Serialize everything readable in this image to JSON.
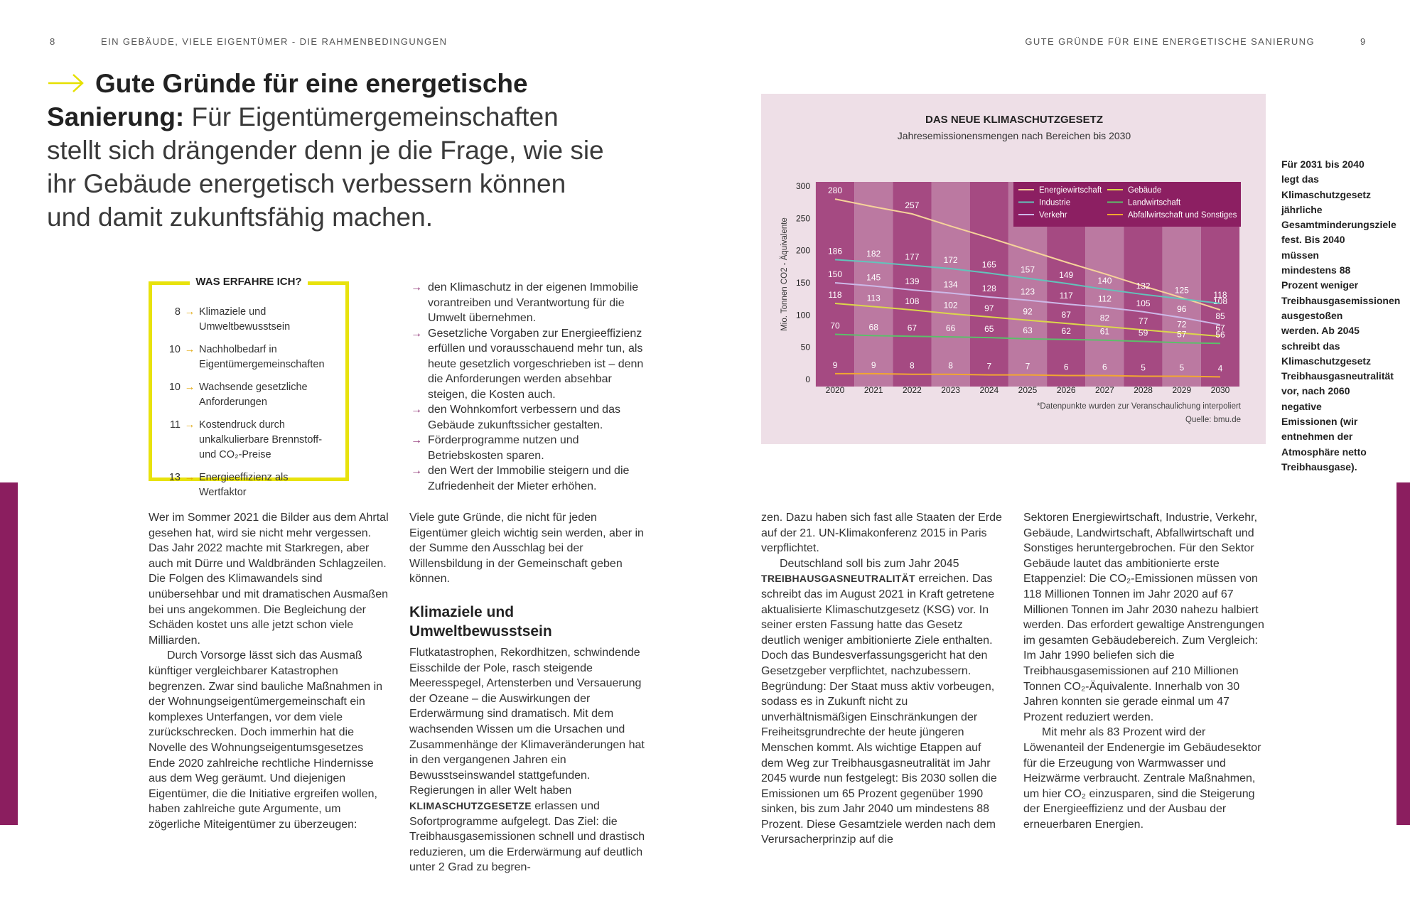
{
  "header": {
    "left_page": "8",
    "left_title": "EIN GEBÄUDE, VIELE EIGENTÜMER - DIE RAHMENBEDINGUNGEN",
    "right_title": "GUTE GRÜNDE FÜR EINE ENERGETISCHE SANIERUNG",
    "right_page": "9"
  },
  "intro": {
    "lead": "Gute Gründe für eine energetische Sanierung:",
    "text": " Für Eigentümergemeinschaften stellt sich drängender denn je die Frage, wie sie ihr Gebäude energetisch verbessern können und damit zukunftsfähig machen."
  },
  "box": {
    "title": "WAS ERFAHRE ICH?",
    "items": [
      {
        "page": 8,
        "text": "Klimaziele und Umweltbewusstsein"
      },
      {
        "page": 10,
        "text": "Nachholbedarf in Eigentümergemeinschaften"
      },
      {
        "page": 10,
        "text": "Wachsende gesetzliche Anforderungen"
      },
      {
        "page": 11,
        "text": "Kostendruck durch unkalkulierbare Brennstoff- und CO₂-Preise"
      },
      {
        "page": 13,
        "text": "Energieeffizienz als Wertfaktor"
      }
    ]
  },
  "bullets": [
    "den Klimaschutz in der eigenen Immobilie vorantreiben und Verantwortung für die Umwelt übernehmen.",
    "Gesetzliche Vorgaben zur Energieeffizienz erfüllen und vorausschauend mehr tun, als heute gesetzlich vorgeschrieben ist – denn die Anforderungen werden absehbar steigen, die Kosten auch.",
    "den Wohnkomfort verbessern und das Gebäude zukunftssicher gestalten.",
    "Förderprogramme nutzen und Betriebskosten sparen.",
    "den Wert der Immobilie steigern und die Zufriedenheit der Mieter erhöhen."
  ],
  "columns": [
    [
      {
        "paragraph": [
          "Wer im Sommer 2021 die Bilder aus dem Ahrtal gesehen hat, wird sie nicht mehr vergessen. Das Jahr 2022 machte mit Starkregen, aber auch mit Dürre und Waldbränden Schlagzeilen. Die Folgen des Klimawandels sind unübersehbar und mit dramatischen Ausmaßen bei uns angekommen. Die Begleichung der Schäden kostet uns alle jetzt schon viele Milliarden."
        ]
      },
      {
        "paragraph": [
          "Durch Vorsorge lässt sich das Ausmaß künftiger vergleichbarer Katastrophen begrenzen. Zwar sind bauliche Maßnahmen in der Wohnungseigentümergemeinschaft ein komplexes Unterfangen, vor dem viele zurückschrecken. Doch immerhin hat die Novelle des Wohnungseigentumsgesetzes Ende 2020 zahlreiche rechtliche Hindernisse aus dem Weg geräumt. Und diejenigen Eigentümer, die die Initiative ergreifen wollen, haben zahlreiche gute Argumente, um zögerliche Miteigentümer zu überzeugen:"
        ]
      }
    ],
    [
      {
        "paragraph": [
          "Viele gute Gründe, die nicht für jeden Eigentümer gleich wichtig sein werden, aber in der Summe den Ausschlag bei der Willensbildung in der Gemeinschaft geben können."
        ]
      },
      {
        "heading": "Klimaziele und Umweltbewusstsein"
      },
      {
        "paragraph": [
          "Flutkatastrophen, Rekordhitzen, schwindende Eisschilde der Pole, rasch steigende Meeresspegel, Artensterben und Versauerung der Ozeane – die Auswirkungen der Erderwärmung sind dramatisch. Mit dem wachsenden Wissen um die Ursachen und Zusammenhänge der Klimaveränderungen hat in den vergangenen Jahren ein Bewusstseinswandel stattgefunden. Regierungen in aller Welt haben ",
          {
            "strong": "KLIMASCHUTZGESETZE"
          },
          " erlassen und Sofortprogramme aufgelegt. Das Ziel: die Treibhausgasemissionen schnell und drastisch reduzieren, um die Erderwärmung auf deutlich unter 2 Grad zu begren-"
        ]
      }
    ],
    [
      {
        "paragraph": [
          "zen. Dazu haben sich fast alle Staaten der Erde auf der 21. UN-Klimakonferenz 2015 in Paris verpflichtet."
        ]
      },
      {
        "paragraph": [
          "Deutschland soll bis zum Jahr 2045 ",
          {
            "strong": "TREIBHAUSGASNEUTRALITÄT"
          },
          " erreichen. Das schreibt das im August 2021 in Kraft getretene aktualisierte Klimaschutzgesetz (KSG) vor. In seiner ersten Fassung hatte das Gesetz deutlich weniger ambitionierte Ziele enthalten. Doch das Bundesverfassungsgericht hat den Gesetzgeber verpflichtet, nachzubessern. Begründung: Der Staat muss aktiv vorbeugen, sodass es in Zukunft nicht zu unverhältnismäßigen Einschränkungen der Freiheitsgrundrechte der heute jüngeren Menschen kommt. Als wichtige Etappen auf dem Weg zur Treibhausgasneutralität im Jahr 2045 wurde nun festgelegt: Bis 2030 sollen die Emissionen um 65 Prozent gegenüber 1990 sinken, bis zum Jahr 2040 um mindestens 88 Prozent. Diese Gesamtziele werden nach dem Verursacherprinzip auf die"
        ]
      }
    ],
    [
      {
        "paragraph": [
          "Sektoren Energiewirtschaft, Industrie, Verkehr, Gebäude, Landwirtschaft, Abfallwirtschaft und Sonstiges heruntergebrochen. Für den Sektor Gebäude lautet das ambitionierte erste Etappenziel: Die CO₂-Emissionen müssen von 118 Millionen Tonnen im Jahr 2020 auf 67 Millionen Tonnen im Jahr 2030 nahezu halbiert werden. Das erfordert gewaltige Anstrengungen im gesamten Gebäudebereich. Zum Vergleich: Im Jahr 1990 beliefen sich die Treibhausgasemissionen auf 210 Millionen Tonnen CO₂-Äquivalente. Innerhalb von 30 Jahren konnten sie gerade einmal um 47 Prozent reduziert werden."
        ]
      },
      {
        "paragraph": [
          "Mit mehr als 83 Prozent wird der Löwenanteil der Endenergie im Gebäudesektor für die Erzeugung von Warmwasser und Heizwärme verbraucht. Zentrale Maßnahmen, um hier CO₂ einzusparen, sind die Steigerung der Energieeffizienz und der Ausbau der erneuerbaren Energien."
        ]
      }
    ]
  ],
  "side_note": "Für 2031 bis 2040 legt das Klimaschutzgesetz jährliche Gesamtminderungsziele fest. Bis 2040 müssen mindestens 88 Prozent weniger Treibhausgasemissionen ausgestoßen werden. Ab 2045 schreibt das Klimaschutzgesetz Treibhausgasneutralität vor, nach 2060 negative Emissionen (wir entnehmen der Atmosphäre netto Treibhausgase).",
  "chart_data": {
    "type": "line",
    "title": "DAS NEUE KLIMASCHUTZGESETZ",
    "subtitle": "Jahresemissionensmengen nach Bereichen bis 2030",
    "ylabel": "Mio. Tonnen CO2 - Äquivalente",
    "note": "*Datenpunkte wurden zur Veranschaulichung interpoliert",
    "source": "Quelle: bmu.de",
    "categories": [
      "2020",
      "2021",
      "2022",
      "2023",
      "2024",
      "2025",
      "2026",
      "2027",
      "2028",
      "2029",
      "2030"
    ],
    "ylim": [
      0,
      300
    ],
    "yticks": [
      0,
      50,
      100,
      150,
      200,
      250,
      300
    ],
    "series": [
      {
        "name": "Energiewirtschaft",
        "color": "#f6d39a",
        "values": [
          280,
          268,
          257,
          238,
          220,
          201,
          182,
          164,
          145,
          127,
          108
        ],
        "value_labels": [
          "280",
          null,
          "257",
          null,
          null,
          null,
          null,
          null,
          null,
          null,
          "108"
        ]
      },
      {
        "name": "Industrie",
        "color": "#62c4bb",
        "values": [
          186,
          182,
          177,
          172,
          165,
          157,
          149,
          140,
          132,
          125,
          118
        ]
      },
      {
        "name": "Verkehr",
        "color": "#cdb9e8",
        "values": [
          150,
          145,
          139,
          134,
          128,
          123,
          117,
          112,
          105,
          96,
          85
        ]
      },
      {
        "name": "Gebäude",
        "color": "#dcd74a",
        "values": [
          118,
          113,
          108,
          102,
          97,
          92,
          87,
          82,
          77,
          72,
          67
        ]
      },
      {
        "name": "Landwirtschaft",
        "color": "#5cbf6a",
        "values": [
          70,
          68,
          67,
          66,
          65,
          63,
          62,
          61,
          59,
          57,
          56
        ]
      },
      {
        "name": "Abfallwirtschaft und Sonstiges",
        "color": "#f2a630",
        "values": [
          9,
          9,
          8,
          8,
          7,
          7,
          6,
          6,
          5,
          5,
          4
        ]
      }
    ]
  }
}
